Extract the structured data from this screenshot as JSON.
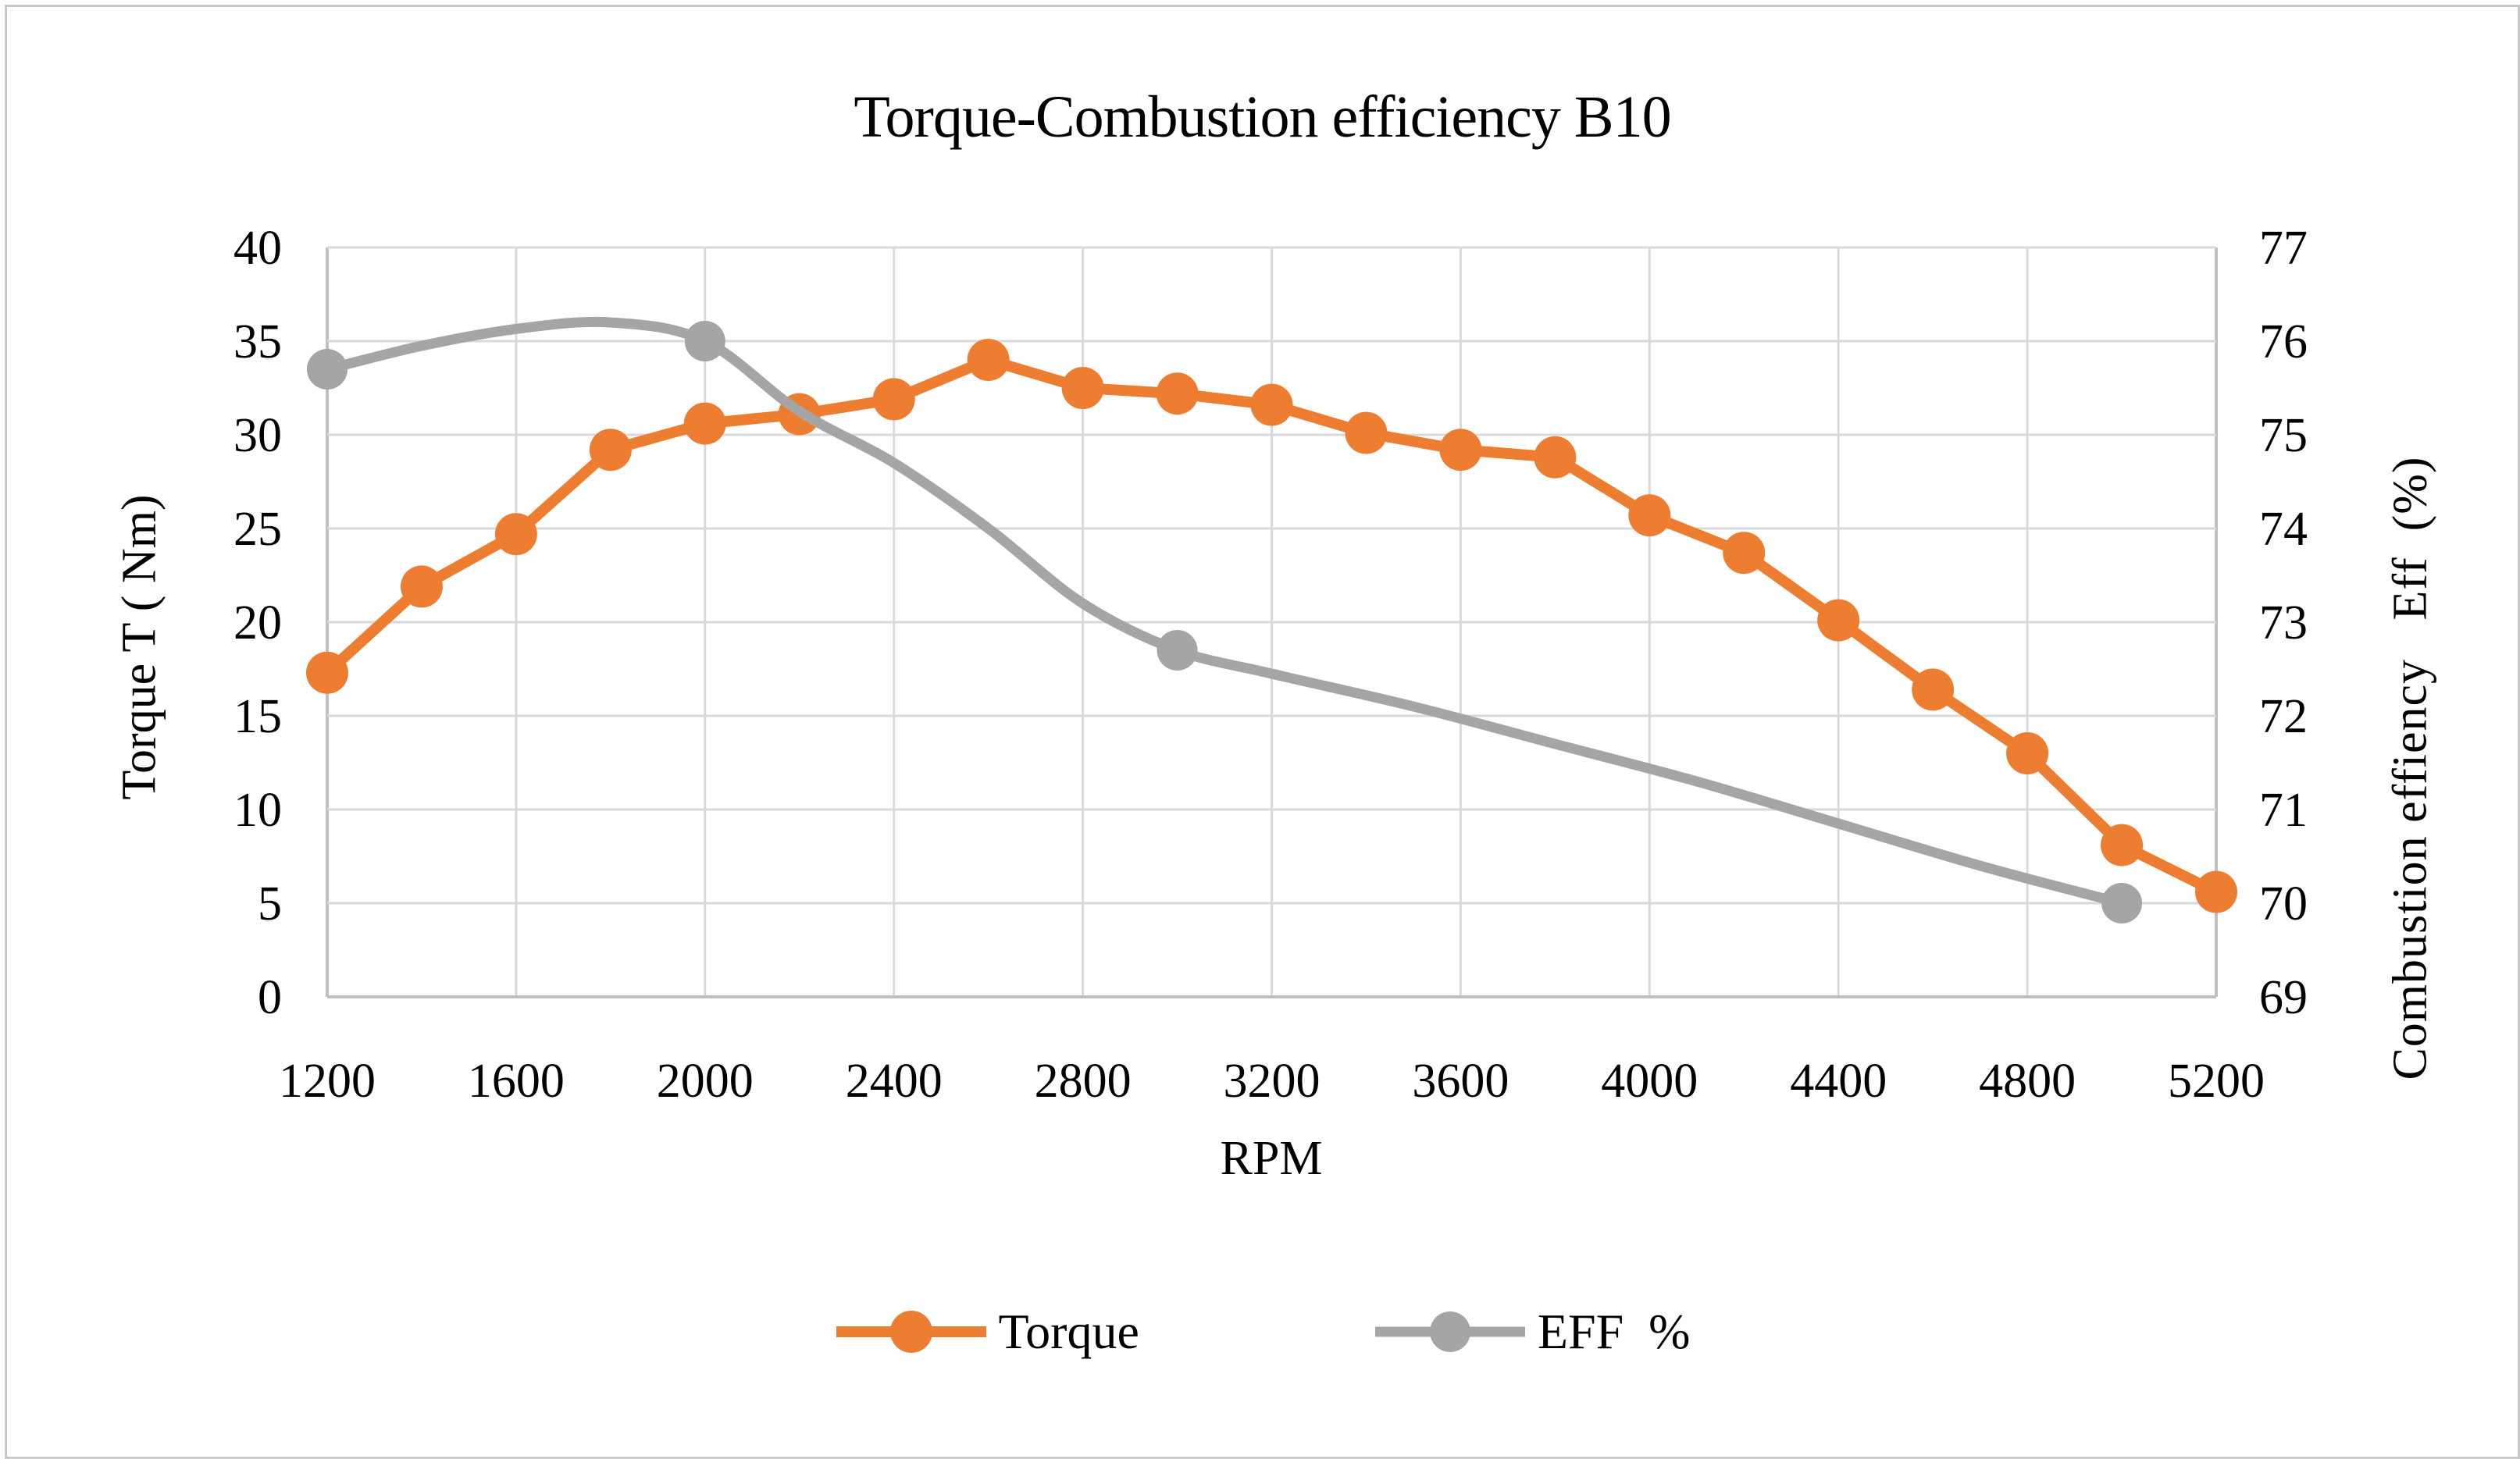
{
  "figure": {
    "background": "#FFFFFF",
    "border_color": "#C9C9C9",
    "text_color": "#000000",
    "gridline_color": "#D9D9D9",
    "axis_line_color": "#BFBFBF"
  },
  "chart_data": {
    "type": "line",
    "title": "Torque-Combustion efficiency B10",
    "grid": true,
    "legend_position": "bottom",
    "x_axis": {
      "label": "RPM",
      "min": 1200,
      "max": 5200,
      "tick_step": 400,
      "ticks": [
        1200,
        1600,
        2000,
        2400,
        2800,
        3200,
        3600,
        4000,
        4400,
        4800,
        5200
      ]
    },
    "y_axis_left": {
      "label": "Torque T ( Nm)",
      "min": 0,
      "max": 40,
      "tick_step": 5,
      "ticks": [
        40,
        35,
        30,
        25,
        20,
        15,
        10,
        5,
        0
      ]
    },
    "y_axis_right": {
      "label": "Combustion effiency   Eff  (%)",
      "min": 69,
      "max": 77,
      "tick_step": 1,
      "ticks": [
        77,
        76,
        75,
        74,
        73,
        72,
        71,
        70,
        69
      ]
    },
    "series": [
      {
        "name": "Torque",
        "color": "#ED7D31",
        "axis": "left",
        "smooth": false,
        "line_width": 14,
        "marker_radius": 27,
        "x": [
          1200,
          1400,
          1600,
          1800,
          2000,
          2200,
          2400,
          2600,
          2800,
          3000,
          3200,
          3400,
          3600,
          3800,
          4000,
          4200,
          4400,
          4600,
          4800,
          5000,
          5200
        ],
        "y": [
          17.3,
          21.9,
          24.7,
          29.2,
          30.6,
          31.1,
          31.9,
          34.0,
          32.5,
          32.2,
          31.6,
          30.1,
          29.2,
          28.8,
          25.7,
          23.7,
          20.1,
          16.4,
          13.0,
          8.1,
          5.6
        ]
      },
      {
        "name": "EFF %",
        "color": "#A5A5A5",
        "axis": "right",
        "smooth": true,
        "line_width": 13,
        "marker_radius": 26,
        "x": [
          1200,
          2000,
          3000,
          5000
        ],
        "y": [
          75.7,
          76.0,
          72.7,
          70.0
        ],
        "line_shape": {
          "x": [
            1200,
            1400,
            1600,
            1800,
            2000,
            2200,
            2400,
            2600,
            2800,
            3000,
            3200,
            3500,
            3800,
            4100,
            4400,
            4700,
            5000
          ],
          "y": [
            75.7,
            75.95,
            76.13,
            76.2,
            76.0,
            75.25,
            74.7,
            74.0,
            73.2,
            72.7,
            72.45,
            72.1,
            71.7,
            71.3,
            70.85,
            70.4,
            70.0
          ]
        }
      }
    ]
  },
  "legend": {
    "items": [
      {
        "label": "Torque",
        "color": "#ED7D31"
      },
      {
        "label": "EFF  %",
        "color": "#A5A5A5"
      }
    ]
  }
}
